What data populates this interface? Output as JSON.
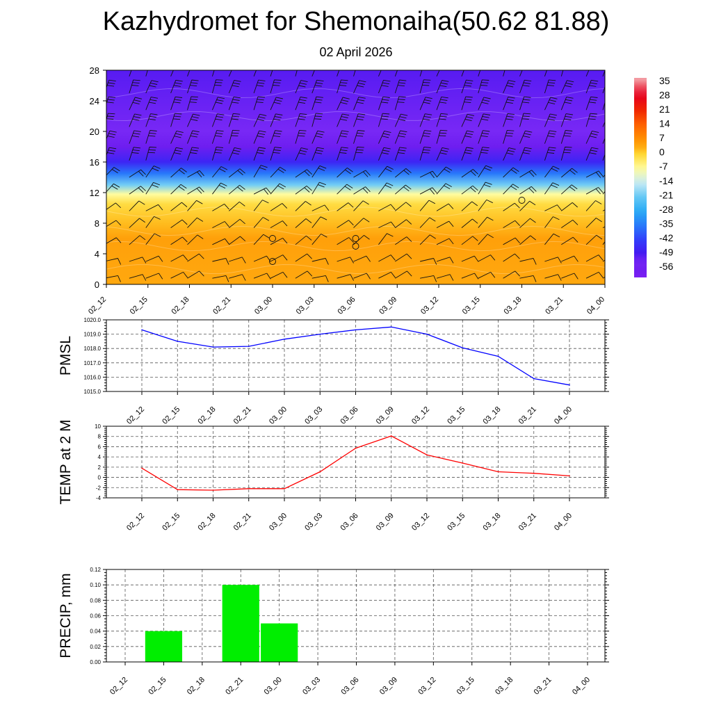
{
  "title": "Kazhydromet for Shemonaiha(50.62 81.88)",
  "subtitle": "02 April 2026",
  "time_labels": [
    "02_12",
    "02_15",
    "02_18",
    "02_21",
    "03_00",
    "03_03",
    "03_06",
    "03_09",
    "03_12",
    "03_15",
    "03_18",
    "03_21",
    "04_00"
  ],
  "chart_data": [
    {
      "type": "heatmap",
      "name": "cross-section",
      "ylim": [
        0,
        28
      ],
      "yticks": [
        "0",
        "4",
        "8",
        "12",
        "16",
        "20",
        "24",
        "28"
      ],
      "colorbar_labels": [
        "35",
        "28",
        "21",
        "14",
        "7",
        "0",
        "-7",
        "-14",
        "-21",
        "-28",
        "-35",
        "-42",
        "-49",
        "-56"
      ],
      "colorbar_range": [
        -60,
        37
      ],
      "column_profile": [
        {
          "y": 0,
          "value": 4
        },
        {
          "y": 6,
          "value": 5
        },
        {
          "y": 8,
          "value": 2
        },
        {
          "y": 10.5,
          "value": -1
        },
        {
          "y": 11.8,
          "value": -7
        },
        {
          "y": 13,
          "value": -20
        },
        {
          "y": 14.5,
          "value": -35
        },
        {
          "y": 16,
          "value": -46
        },
        {
          "y": 18,
          "value": -56
        },
        {
          "y": 20,
          "value": -52
        },
        {
          "y": 28,
          "value": -50
        }
      ],
      "calm_markers": [
        {
          "x": 4,
          "y": 6
        },
        {
          "x": 4,
          "y": 3
        },
        {
          "x": 6,
          "y": 6
        },
        {
          "x": 6,
          "y": 5
        },
        {
          "x": 10,
          "y": 11
        }
      ]
    },
    {
      "type": "line",
      "ylabel": "PMSL",
      "ylim": [
        1015,
        1020
      ],
      "yticks": [
        "1015.0",
        "1016.0",
        "1017.0",
        "1018.0",
        "1019.0",
        "1020.0"
      ],
      "color": "#0000ff",
      "values": [
        1019.3,
        1018.5,
        1018.1,
        1018.15,
        1018.65,
        1019.0,
        1019.3,
        1019.5,
        1019.0,
        1018.05,
        1017.45,
        1015.9,
        1015.45
      ]
    },
    {
      "type": "line",
      "ylabel": "TEMP at 2 M",
      "ylim": [
        -4,
        10
      ],
      "yticks": [
        "-4",
        "-2",
        "0",
        "2",
        "4",
        "6",
        "8",
        "10"
      ],
      "color": "#ff0000",
      "values": [
        1.8,
        -2.4,
        -2.5,
        -2.2,
        -2.2,
        1.1,
        5.7,
        8.1,
        4.4,
        2.8,
        1.1,
        0.8,
        0.3
      ]
    },
    {
      "type": "bar",
      "ylabel": "PRECIP, mm",
      "ylim": [
        0,
        0.12
      ],
      "yticks": [
        "0.00",
        "0.02",
        "0.04",
        "0.06",
        "0.08",
        "0.10",
        "0.12"
      ],
      "color": "#00ee00",
      "values": [
        0,
        0.04,
        0,
        0.1,
        0.05,
        0,
        0,
        0,
        0,
        0,
        0,
        0,
        0
      ]
    }
  ]
}
